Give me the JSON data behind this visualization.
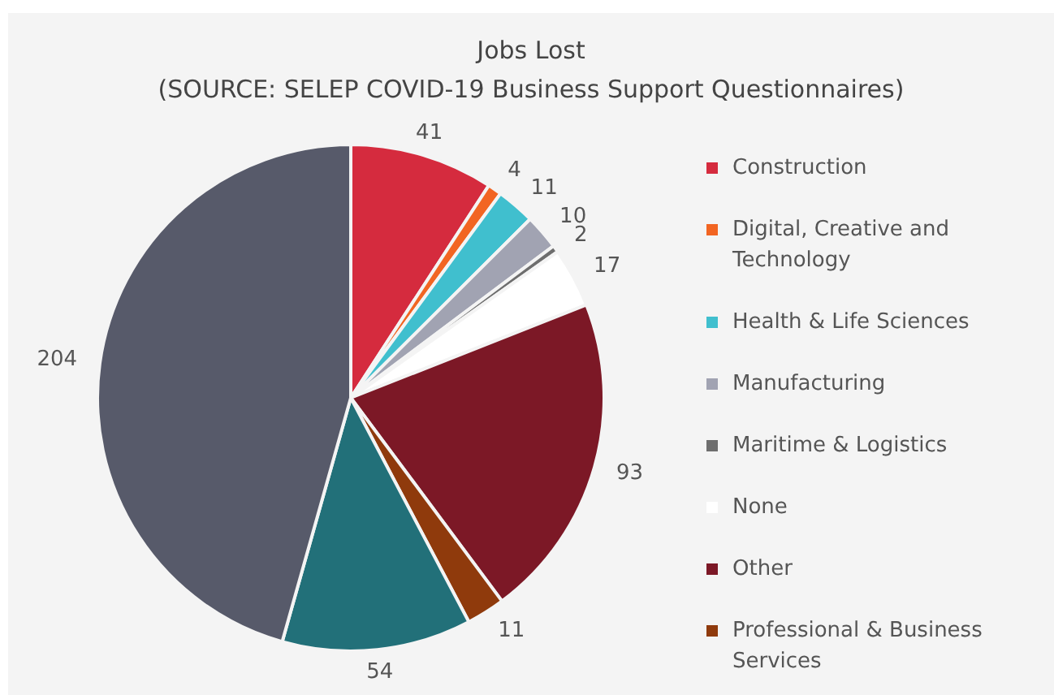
{
  "chart_data": {
    "type": "pie",
    "title": "Jobs Lost",
    "subtitle": "(SOURCE: SELEP COVID-19 Business Support Questionnaires)",
    "categories": [
      "Construction",
      "Digital, Creative and Technology",
      "Health & Life Sciences",
      "Manufacturing",
      "Maritime & Logistics",
      "None",
      "Other",
      "Professional & Business Services",
      null,
      null
    ],
    "values": [
      41,
      4,
      11,
      10,
      2,
      17,
      93,
      11,
      54,
      204
    ],
    "colors": [
      "#d52b3e",
      "#f26522",
      "#40bfce",
      "#a1a3b2",
      "#6e6e6e",
      "#ffffff",
      "#7c1826",
      "#8f3a0c",
      "#227079",
      "#575a6a"
    ],
    "data_labels": true,
    "legend": "right"
  }
}
